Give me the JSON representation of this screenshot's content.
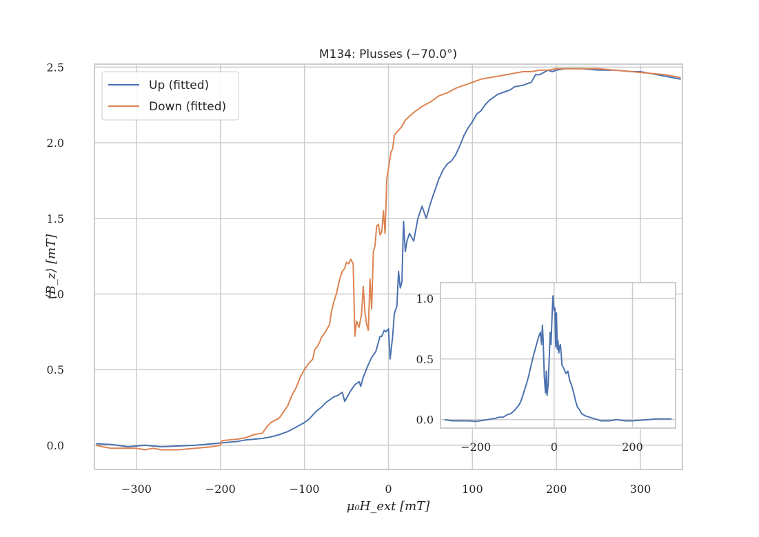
{
  "chart_data": [
    {
      "type": "line",
      "title": "M134: Plusses (−70.0°)",
      "xlabel": "μ₀H_ext [mT]",
      "ylabel": "⟨B_z⟩ [mT]",
      "xlim": [
        -350,
        350
      ],
      "ylim": [
        -0.16,
        2.52
      ],
      "grid": true,
      "legend_position": "top-left",
      "x_ticks": [
        -300,
        -200,
        -100,
        0,
        100,
        200,
        300
      ],
      "x_tick_labels": [
        "−300",
        "−200",
        "−100",
        "0",
        "100",
        "200",
        "300"
      ],
      "y_ticks": [
        0.0,
        0.5,
        1.0,
        1.5,
        2.0,
        2.5
      ],
      "y_tick_labels": [
        "0.0",
        "0.5",
        "1.0",
        "1.5",
        "2.0",
        "2.5"
      ],
      "series": [
        {
          "name": "Up (fitted)",
          "color": "#4c72b0",
          "x": [
            -348,
            -330,
            -310,
            -290,
            -270,
            -250,
            -230,
            -210,
            -200,
            -190,
            -180,
            -170,
            -160,
            -150,
            -140,
            -130,
            -120,
            -110,
            -100,
            -95,
            -90,
            -85,
            -80,
            -75,
            -70,
            -65,
            -60,
            -55,
            -52,
            -50,
            -48,
            -45,
            -40,
            -35,
            -33,
            -30,
            -25,
            -20,
            -15,
            -10,
            -8,
            -5,
            -3,
            0,
            2,
            5,
            7,
            10,
            12,
            14,
            16,
            18,
            20,
            22,
            25,
            30,
            35,
            40,
            45,
            50,
            55,
            60,
            65,
            70,
            75,
            80,
            85,
            90,
            95,
            100,
            105,
            110,
            115,
            120,
            125,
            130,
            135,
            140,
            145,
            150,
            160,
            170,
            175,
            180,
            190,
            195,
            200,
            210,
            230,
            250,
            270,
            290,
            300,
            310,
            320,
            330,
            348
          ],
          "y": [
            0.01,
            0.005,
            -0.01,
            0.0,
            -0.01,
            -0.005,
            0.0,
            0.01,
            0.015,
            0.02,
            0.025,
            0.035,
            0.04,
            0.045,
            0.055,
            0.07,
            0.09,
            0.12,
            0.15,
            0.17,
            0.2,
            0.23,
            0.25,
            0.28,
            0.3,
            0.32,
            0.33,
            0.35,
            0.29,
            0.31,
            0.33,
            0.36,
            0.4,
            0.42,
            0.39,
            0.45,
            0.52,
            0.58,
            0.62,
            0.72,
            0.72,
            0.76,
            0.75,
            0.77,
            0.57,
            0.72,
            0.87,
            0.92,
            1.15,
            1.04,
            1.08,
            1.48,
            1.28,
            1.35,
            1.4,
            1.35,
            1.5,
            1.58,
            1.5,
            1.6,
            1.68,
            1.76,
            1.82,
            1.86,
            1.88,
            1.92,
            1.98,
            2.05,
            2.1,
            2.14,
            2.19,
            2.21,
            2.25,
            2.28,
            2.3,
            2.32,
            2.33,
            2.34,
            2.35,
            2.37,
            2.38,
            2.4,
            2.45,
            2.45,
            2.48,
            2.47,
            2.48,
            2.49,
            2.49,
            2.48,
            2.48,
            2.47,
            2.47,
            2.46,
            2.45,
            2.44,
            2.42
          ]
        },
        {
          "name": "Down (fitted)",
          "color": "#dd8452",
          "x": [
            -348,
            -340,
            -330,
            -320,
            -300,
            -290,
            -280,
            -270,
            -250,
            -230,
            -210,
            -200,
            -198,
            -190,
            -180,
            -170,
            -160,
            -150,
            -145,
            -140,
            -130,
            -125,
            -120,
            -115,
            -110,
            -105,
            -100,
            -95,
            -90,
            -88,
            -85,
            -82,
            -80,
            -75,
            -70,
            -68,
            -65,
            -62,
            -60,
            -58,
            -55,
            -52,
            -50,
            -47,
            -45,
            -42,
            -40,
            -38,
            -35,
            -32,
            -30,
            -28,
            -26,
            -24,
            -22,
            -20,
            -18,
            -16,
            -14,
            -12,
            -10,
            -8,
            -6,
            -4,
            -2,
            0,
            3,
            5,
            7,
            10,
            15,
            20,
            30,
            40,
            50,
            60,
            70,
            80,
            90,
            100,
            110,
            120,
            130,
            140,
            150,
            160,
            170,
            180,
            190,
            200,
            210,
            230,
            250,
            270,
            290,
            310,
            330,
            348
          ],
          "y": [
            0.0,
            -0.01,
            -0.02,
            -0.02,
            -0.02,
            -0.03,
            -0.02,
            -0.03,
            -0.03,
            -0.02,
            -0.01,
            0.0,
            0.03,
            0.035,
            0.04,
            0.05,
            0.07,
            0.08,
            0.12,
            0.15,
            0.18,
            0.22,
            0.26,
            0.33,
            0.38,
            0.45,
            0.5,
            0.54,
            0.57,
            0.63,
            0.65,
            0.68,
            0.71,
            0.75,
            0.8,
            0.88,
            0.95,
            1.0,
            1.05,
            1.1,
            1.15,
            1.17,
            1.21,
            1.2,
            1.23,
            1.2,
            0.72,
            0.82,
            0.78,
            0.87,
            1.05,
            0.88,
            0.8,
            0.76,
            1.1,
            0.9,
            1.28,
            1.32,
            1.45,
            1.46,
            1.39,
            1.41,
            1.55,
            1.4,
            1.76,
            1.83,
            1.94,
            1.96,
            2.05,
            2.07,
            2.1,
            2.15,
            2.2,
            2.24,
            2.27,
            2.31,
            2.33,
            2.36,
            2.38,
            2.4,
            2.42,
            2.43,
            2.44,
            2.45,
            2.46,
            2.47,
            2.47,
            2.48,
            2.48,
            2.49,
            2.49,
            2.49,
            2.49,
            2.48,
            2.47,
            2.46,
            2.45,
            2.43
          ]
        }
      ]
    },
    {
      "type": "line",
      "title": "",
      "xlim": [
        -290,
        310
      ],
      "ylim": [
        -0.07,
        1.13
      ],
      "grid": true,
      "x_ticks": [
        -200,
        0,
        200
      ],
      "x_tick_labels": [
        "−200",
        "0",
        "200"
      ],
      "y_ticks": [
        0.0,
        0.5,
        1.0
      ],
      "y_tick_labels": [
        "0.0",
        "0.5",
        "1.0"
      ],
      "series": [
        {
          "name": "",
          "color": "#4c72b0",
          "x": [
            -280,
            -260,
            -240,
            -220,
            -200,
            -190,
            -180,
            -170,
            -160,
            -150,
            -140,
            -130,
            -120,
            -110,
            -100,
            -95,
            -90,
            -85,
            -80,
            -75,
            -70,
            -65,
            -60,
            -55,
            -50,
            -45,
            -40,
            -35,
            -32,
            -30,
            -28,
            -25,
            -22,
            -20,
            -18,
            -15,
            -12,
            -10,
            -8,
            -5,
            -3,
            0,
            2,
            4,
            6,
            8,
            10,
            12,
            14,
            16,
            18,
            20,
            25,
            30,
            35,
            40,
            45,
            50,
            55,
            60,
            65,
            70,
            80,
            90,
            100,
            110,
            120,
            140,
            160,
            180,
            200,
            220,
            240,
            260,
            280,
            300
          ],
          "y": [
            0.0,
            -0.01,
            -0.01,
            -0.01,
            -0.015,
            -0.01,
            -0.005,
            0.0,
            0.005,
            0.01,
            0.02,
            0.02,
            0.04,
            0.05,
            0.08,
            0.1,
            0.12,
            0.15,
            0.2,
            0.25,
            0.3,
            0.36,
            0.43,
            0.5,
            0.56,
            0.62,
            0.68,
            0.72,
            0.62,
            0.78,
            0.66,
            0.35,
            0.22,
            0.4,
            0.2,
            0.3,
            0.55,
            0.72,
            0.62,
            0.88,
            1.02,
            0.9,
            0.92,
            0.6,
            0.88,
            0.58,
            0.65,
            0.55,
            0.6,
            0.62,
            0.55,
            0.45,
            0.42,
            0.38,
            0.4,
            0.32,
            0.28,
            0.22,
            0.15,
            0.1,
            0.08,
            0.05,
            0.03,
            0.02,
            0.01,
            0.0,
            -0.01,
            -0.01,
            0.0,
            -0.01,
            -0.01,
            -0.005,
            0.0,
            0.005,
            0.005,
            0.005
          ]
        }
      ]
    }
  ]
}
